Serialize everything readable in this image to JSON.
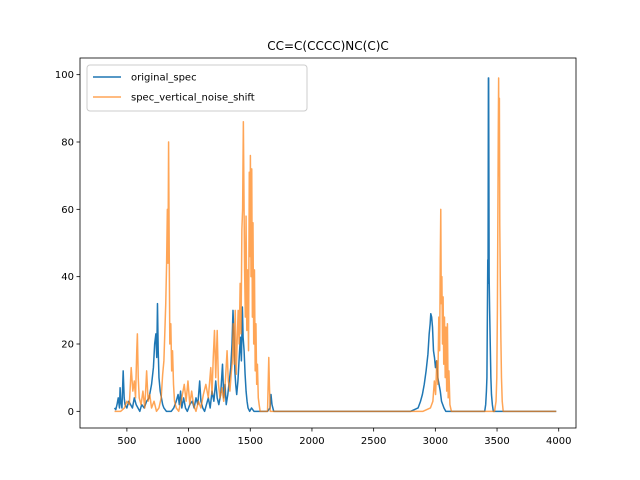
{
  "chart_data": {
    "type": "line",
    "title": "CC=C(CCCC)NC(C)C",
    "xlabel": "",
    "ylabel": "",
    "xlim": [
      120,
      4140
    ],
    "ylim": [
      -4.95,
      104.95
    ],
    "xticks": [
      500,
      1000,
      1500,
      2000,
      2500,
      3000,
      3500,
      4000
    ],
    "yticks": [
      0,
      20,
      40,
      60,
      80,
      100
    ],
    "grid": false,
    "legend_position": "top-left",
    "series": [
      {
        "name": "original_spec",
        "color": "#1f77b4",
        "opacity": 1,
        "points": [
          [
            400,
            1
          ],
          [
            410,
            0.5
          ],
          [
            420,
            2
          ],
          [
            430,
            4
          ],
          [
            440,
            1
          ],
          [
            445,
            7
          ],
          [
            450,
            3
          ],
          [
            460,
            1
          ],
          [
            470,
            12
          ],
          [
            478,
            4
          ],
          [
            485,
            2
          ],
          [
            500,
            1
          ],
          [
            515,
            3
          ],
          [
            530,
            2
          ],
          [
            545,
            1
          ],
          [
            560,
            4
          ],
          [
            575,
            2
          ],
          [
            590,
            1
          ],
          [
            605,
            0
          ],
          [
            620,
            2
          ],
          [
            640,
            1
          ],
          [
            660,
            3
          ],
          [
            680,
            4
          ],
          [
            700,
            8
          ],
          [
            715,
            13
          ],
          [
            725,
            20
          ],
          [
            735,
            23
          ],
          [
            742,
            16
          ],
          [
            748,
            32
          ],
          [
            754,
            18
          ],
          [
            760,
            10
          ],
          [
            770,
            6
          ],
          [
            780,
            4
          ],
          [
            790,
            2
          ],
          [
            800,
            1
          ],
          [
            820,
            0
          ],
          [
            860,
            0
          ],
          [
            880,
            1
          ],
          [
            900,
            3
          ],
          [
            915,
            5
          ],
          [
            925,
            2
          ],
          [
            935,
            6
          ],
          [
            945,
            1
          ],
          [
            960,
            4
          ],
          [
            975,
            1
          ],
          [
            990,
            0
          ],
          [
            1010,
            2
          ],
          [
            1030,
            3
          ],
          [
            1045,
            1
          ],
          [
            1060,
            4
          ],
          [
            1075,
            2
          ],
          [
            1090,
            9
          ],
          [
            1100,
            3
          ],
          [
            1115,
            1
          ],
          [
            1130,
            0
          ],
          [
            1145,
            2
          ],
          [
            1160,
            4
          ],
          [
            1175,
            1
          ],
          [
            1190,
            6
          ],
          [
            1205,
            3
          ],
          [
            1220,
            9
          ],
          [
            1232,
            4
          ],
          [
            1245,
            2
          ],
          [
            1260,
            5
          ],
          [
            1275,
            14
          ],
          [
            1285,
            4
          ],
          [
            1295,
            8
          ],
          [
            1305,
            2
          ],
          [
            1318,
            5
          ],
          [
            1330,
            9
          ],
          [
            1342,
            13
          ],
          [
            1352,
            20
          ],
          [
            1360,
            30
          ],
          [
            1368,
            22
          ],
          [
            1375,
            12
          ],
          [
            1382,
            8
          ],
          [
            1390,
            5
          ],
          [
            1400,
            9
          ],
          [
            1412,
            17
          ],
          [
            1420,
            22
          ],
          [
            1428,
            15
          ],
          [
            1436,
            31
          ],
          [
            1442,
            22
          ],
          [
            1450,
            18
          ],
          [
            1458,
            11
          ],
          [
            1466,
            6
          ],
          [
            1474,
            3
          ],
          [
            1482,
            1
          ],
          [
            1495,
            0
          ],
          [
            1510,
            1
          ],
          [
            1530,
            0
          ],
          [
            1550,
            0
          ],
          [
            1600,
            0
          ],
          [
            1640,
            0
          ],
          [
            1660,
            1
          ],
          [
            1668,
            5
          ],
          [
            1676,
            2
          ],
          [
            1690,
            0
          ],
          [
            1800,
            0
          ],
          [
            2000,
            0
          ],
          [
            2500,
            0
          ],
          [
            2800,
            0
          ],
          [
            2860,
            1
          ],
          [
            2880,
            3
          ],
          [
            2895,
            5
          ],
          [
            2910,
            8
          ],
          [
            2925,
            12
          ],
          [
            2940,
            17
          ],
          [
            2950,
            23
          ],
          [
            2958,
            26
          ],
          [
            2963,
            29
          ],
          [
            2970,
            28
          ],
          [
            2977,
            25
          ],
          [
            2985,
            18
          ],
          [
            2993,
            16
          ],
          [
            3001,
            13
          ],
          [
            3010,
            15
          ],
          [
            3020,
            10
          ],
          [
            3030,
            8
          ],
          [
            3040,
            6
          ],
          [
            3050,
            3
          ],
          [
            3060,
            2
          ],
          [
            3070,
            1
          ],
          [
            3085,
            0
          ],
          [
            3200,
            0
          ],
          [
            3400,
            0
          ],
          [
            3408,
            2
          ],
          [
            3414,
            6
          ],
          [
            3418,
            10
          ],
          [
            3422,
            30
          ],
          [
            3425,
            45
          ],
          [
            3427,
            38
          ],
          [
            3430,
            99
          ],
          [
            3432,
            99
          ],
          [
            3434,
            70
          ],
          [
            3436,
            40
          ],
          [
            3440,
            30
          ],
          [
            3445,
            20
          ],
          [
            3450,
            10
          ],
          [
            3455,
            5
          ],
          [
            3462,
            2
          ],
          [
            3470,
            0
          ],
          [
            3600,
            0
          ],
          [
            3980,
            0
          ]
        ]
      },
      {
        "name": "spec_vertical_noise_shift",
        "color": "#ff7f0e",
        "opacity": 0.7,
        "points": [
          [
            400,
            0
          ],
          [
            450,
            0
          ],
          [
            480,
            1
          ],
          [
            500,
            3
          ],
          [
            520,
            2
          ],
          [
            535,
            13
          ],
          [
            548,
            6
          ],
          [
            560,
            9
          ],
          [
            570,
            4
          ],
          [
            580,
            18
          ],
          [
            585,
            23
          ],
          [
            592,
            10
          ],
          [
            600,
            4
          ],
          [
            615,
            2
          ],
          [
            630,
            6
          ],
          [
            645,
            1
          ],
          [
            660,
            12
          ],
          [
            672,
            3
          ],
          [
            685,
            5
          ],
          [
            700,
            1
          ],
          [
            720,
            3
          ],
          [
            740,
            0
          ],
          [
            760,
            1
          ],
          [
            778,
            4
          ],
          [
            790,
            11
          ],
          [
            800,
            15
          ],
          [
            808,
            24
          ],
          [
            815,
            32
          ],
          [
            822,
            44
          ],
          [
            828,
            60
          ],
          [
            833,
            44
          ],
          [
            838,
            80
          ],
          [
            843,
            48
          ],
          [
            848,
            20
          ],
          [
            856,
            26
          ],
          [
            863,
            12
          ],
          [
            870,
            18
          ],
          [
            878,
            8
          ],
          [
            886,
            3
          ],
          [
            900,
            1
          ],
          [
            920,
            0
          ],
          [
            945,
            4
          ],
          [
            965,
            8
          ],
          [
            980,
            3
          ],
          [
            995,
            9
          ],
          [
            1010,
            2
          ],
          [
            1025,
            6
          ],
          [
            1040,
            2
          ],
          [
            1060,
            0
          ],
          [
            1080,
            3
          ],
          [
            1100,
            1
          ],
          [
            1120,
            5
          ],
          [
            1140,
            8
          ],
          [
            1160,
            4
          ],
          [
            1180,
            13
          ],
          [
            1190,
            5
          ],
          [
            1200,
            16
          ],
          [
            1210,
            24
          ],
          [
            1220,
            10
          ],
          [
            1232,
            24
          ],
          [
            1242,
            8
          ],
          [
            1255,
            4
          ],
          [
            1270,
            7
          ],
          [
            1285,
            3
          ],
          [
            1300,
            10
          ],
          [
            1312,
            18
          ],
          [
            1322,
            9
          ],
          [
            1335,
            6
          ],
          [
            1345,
            11
          ],
          [
            1355,
            15
          ],
          [
            1362,
            26
          ],
          [
            1370,
            14
          ],
          [
            1378,
            30
          ],
          [
            1386,
            11
          ],
          [
            1394,
            21
          ],
          [
            1402,
            30
          ],
          [
            1410,
            20
          ],
          [
            1418,
            38
          ],
          [
            1425,
            23
          ],
          [
            1432,
            54
          ],
          [
            1438,
            60
          ],
          [
            1444,
            86
          ],
          [
            1449,
            64
          ],
          [
            1454,
            42
          ],
          [
            1460,
            28
          ],
          [
            1466,
            58
          ],
          [
            1472,
            24
          ],
          [
            1478,
            42
          ],
          [
            1486,
            18
          ],
          [
            1492,
            71
          ],
          [
            1497,
            46
          ],
          [
            1501,
            76
          ],
          [
            1506,
            40
          ],
          [
            1512,
            72
          ],
          [
            1517,
            28
          ],
          [
            1522,
            56
          ],
          [
            1528,
            20
          ],
          [
            1534,
            42
          ],
          [
            1540,
            12
          ],
          [
            1546,
            26
          ],
          [
            1552,
            8
          ],
          [
            1558,
            14
          ],
          [
            1565,
            4
          ],
          [
            1572,
            2
          ],
          [
            1580,
            0
          ],
          [
            1640,
            0
          ],
          [
            1650,
            16
          ],
          [
            1655,
            8
          ],
          [
            1662,
            0
          ],
          [
            1800,
            0
          ],
          [
            2000,
            0
          ],
          [
            2500,
            0
          ],
          [
            2900,
            0
          ],
          [
            2960,
            1
          ],
          [
            2980,
            3
          ],
          [
            2992,
            9
          ],
          [
            3002,
            5
          ],
          [
            3012,
            15
          ],
          [
            3020,
            8
          ],
          [
            3028,
            28
          ],
          [
            3035,
            18
          ],
          [
            3040,
            45
          ],
          [
            3044,
            60
          ],
          [
            3048,
            32
          ],
          [
            3053,
            40
          ],
          [
            3058,
            20
          ],
          [
            3063,
            34
          ],
          [
            3068,
            14
          ],
          [
            3074,
            28
          ],
          [
            3080,
            10
          ],
          [
            3086,
            25
          ],
          [
            3092,
            6
          ],
          [
            3098,
            26
          ],
          [
            3104,
            4
          ],
          [
            3110,
            12
          ],
          [
            3118,
            2
          ],
          [
            3130,
            0
          ],
          [
            3150,
            0
          ],
          [
            3450,
            0
          ],
          [
            3480,
            0
          ],
          [
            3492,
            3
          ],
          [
            3498,
            10
          ],
          [
            3503,
            30
          ],
          [
            3507,
            60
          ],
          [
            3510,
            82
          ],
          [
            3513,
            99
          ],
          [
            3516,
            70
          ],
          [
            3519,
            93
          ],
          [
            3522,
            56
          ],
          [
            3526,
            40
          ],
          [
            3531,
            22
          ],
          [
            3536,
            10
          ],
          [
            3542,
            3
          ],
          [
            3550,
            0
          ],
          [
            3700,
            0
          ],
          [
            3980,
            0
          ]
        ]
      }
    ]
  }
}
